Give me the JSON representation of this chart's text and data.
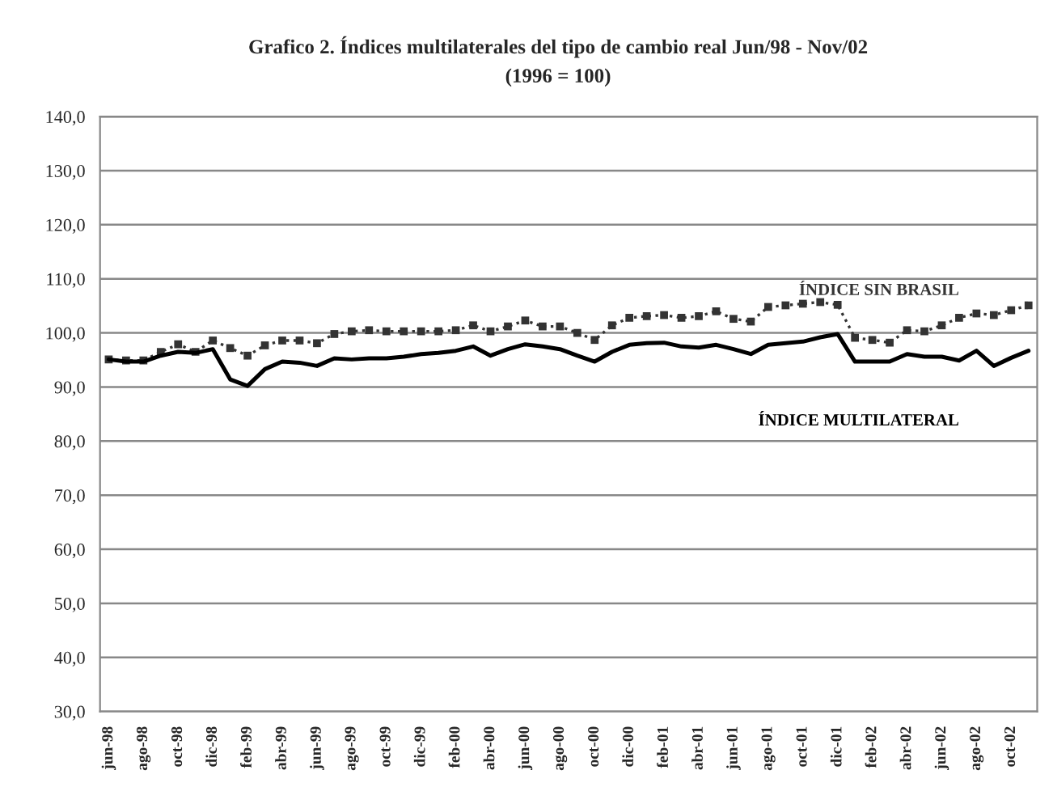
{
  "chart_data": {
    "type": "line",
    "title": "Grafico 2. Índices multilaterales del tipo de cambio real Jun/98 - Nov/02",
    "subtitle": "(1996 = 100)",
    "categories": [
      "jun-98",
      null,
      "ago-98",
      null,
      "oct-98",
      null,
      "dic-98",
      null,
      "feb-99",
      null,
      "abr-99",
      null,
      "jun-99",
      null,
      "ago-99",
      null,
      "oct-99",
      null,
      "dic-99",
      null,
      "feb-00",
      null,
      "abr-00",
      null,
      "jun-00",
      null,
      "ago-00",
      null,
      "oct-00",
      null,
      "dic-00",
      null,
      "feb-01",
      null,
      "abr-01",
      null,
      "jun-01",
      null,
      "ago-01",
      null,
      "oct-01",
      null,
      "dic-01",
      null,
      "feb-02",
      null,
      "abr-02",
      null,
      "jun-02",
      null,
      "ago-02",
      null,
      "oct-02",
      null
    ],
    "series": [
      {
        "name": "ÍNDICE SIN BRASIL",
        "color": "#333333",
        "marker": "square",
        "line_style": "dotted",
        "values": [
          95.1,
          94.9,
          94.9,
          96.5,
          97.9,
          96.5,
          98.6,
          97.2,
          95.8,
          97.7,
          98.6,
          98.6,
          98.1,
          99.8,
          100.3,
          100.5,
          100.3,
          100.3,
          100.3,
          100.3,
          100.5,
          101.4,
          100.3,
          101.2,
          102.3,
          101.2,
          101.2,
          100.0,
          98.7,
          101.4,
          102.8,
          103.1,
          103.3,
          102.8,
          103.1,
          104.0,
          102.6,
          102.1,
          104.8,
          105.1,
          105.4,
          105.7,
          105.2,
          99.1,
          98.7,
          98.2,
          100.5,
          100.3,
          101.4,
          102.8,
          103.6,
          103.3,
          104.2,
          105.1
        ]
      },
      {
        "name": "ÍNDICE MULTILATERAL",
        "color": "#000000",
        "marker": "none",
        "line_style": "solid",
        "values": [
          95.1,
          94.7,
          94.7,
          95.8,
          96.5,
          96.3,
          97.0,
          91.4,
          90.2,
          93.3,
          94.7,
          94.5,
          93.9,
          95.3,
          95.1,
          95.3,
          95.3,
          95.6,
          96.1,
          96.3,
          96.7,
          97.5,
          95.8,
          97.0,
          97.9,
          97.5,
          97.0,
          95.8,
          94.7,
          96.5,
          97.8,
          98.1,
          98.2,
          97.5,
          97.3,
          97.8,
          97.0,
          96.1,
          97.8,
          98.1,
          98.4,
          99.2,
          99.8,
          94.7,
          94.7,
          94.7,
          96.1,
          95.6,
          95.6,
          94.9,
          96.7,
          93.9,
          95.4,
          96.7
        ]
      }
    ],
    "ylim": [
      30,
      140
    ],
    "yticks": [
      {
        "value": 30,
        "label": "30,0"
      },
      {
        "value": 40,
        "label": "40,0"
      },
      {
        "value": 50,
        "label": "50,0"
      },
      {
        "value": 60,
        "label": "60,0"
      },
      {
        "value": 70,
        "label": "70,0"
      },
      {
        "value": 80,
        "label": "80,0"
      },
      {
        "value": 90,
        "label": "90,0"
      },
      {
        "value": 100,
        "label": "100,0"
      },
      {
        "value": 110,
        "label": "110,0"
      },
      {
        "value": 120,
        "label": "120,0"
      },
      {
        "value": 130,
        "label": "130,0"
      },
      {
        "value": 140,
        "label": "140,0"
      }
    ],
    "grid": "y",
    "legend": false
  }
}
